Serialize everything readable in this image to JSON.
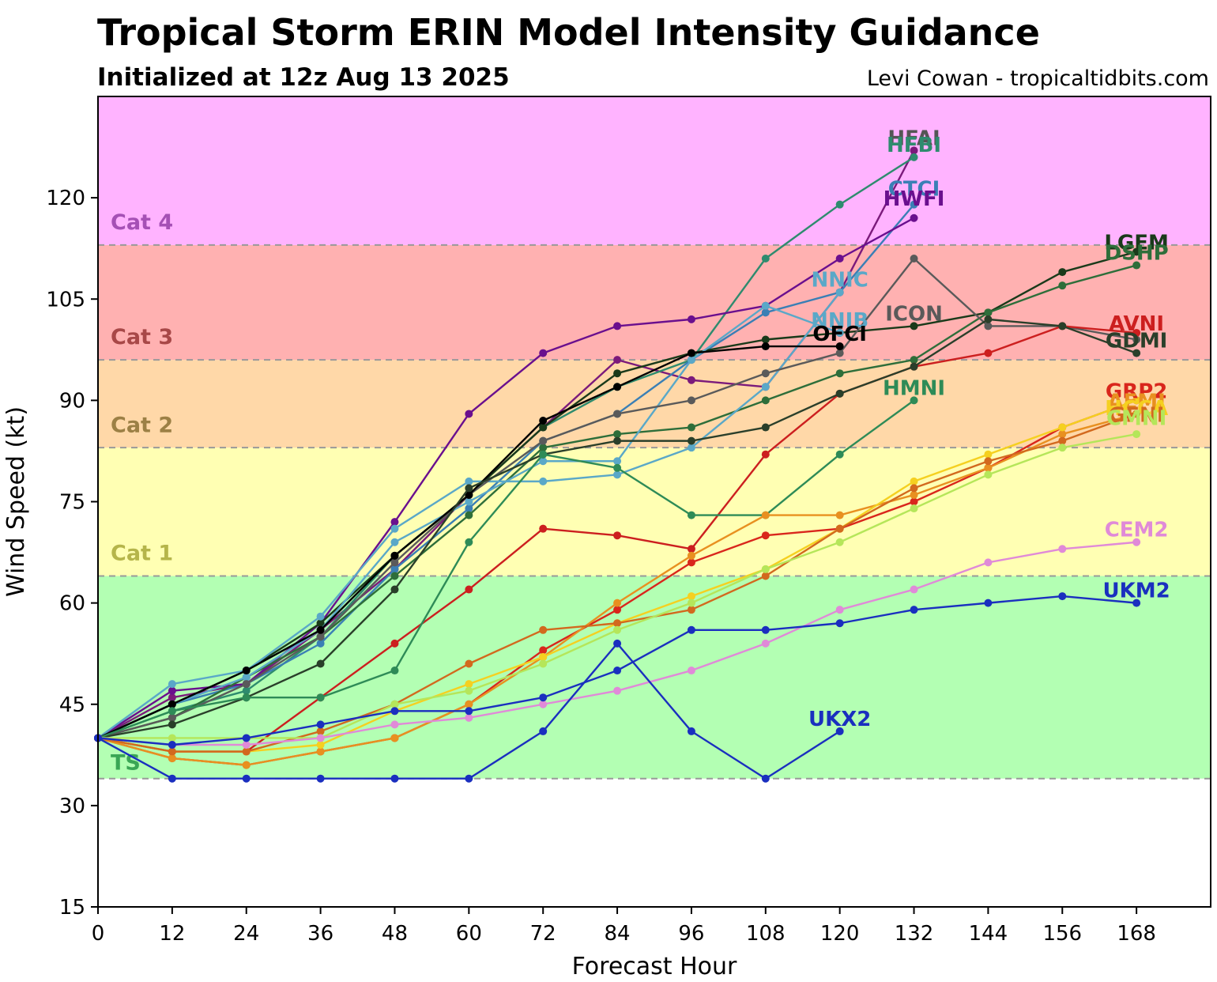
{
  "header": {
    "title": "Tropical Storm ERIN Model Intensity Guidance",
    "subtitle": "Initialized at 12z Aug 13 2025",
    "credit": "Levi Cowan - tropicaltidbits.com"
  },
  "chart_data": {
    "type": "line",
    "title": "Tropical Storm ERIN Model Intensity Guidance",
    "xlabel": "Forecast Hour",
    "ylabel": "Wind Speed (kt)",
    "xlim": [
      0,
      180
    ],
    "ylim": [
      15,
      135
    ],
    "xticks": [
      0,
      12,
      24,
      36,
      48,
      60,
      72,
      84,
      96,
      108,
      120,
      132,
      144,
      156,
      168
    ],
    "yticks": [
      15,
      30,
      45,
      60,
      75,
      90,
      105,
      120
    ],
    "bands": [
      {
        "name": "TS",
        "from": 34,
        "to": 64,
        "color": "#b3ffb3",
        "label_color": "#3aa655",
        "label_value": 36.5
      },
      {
        "name": "Cat 1",
        "from": 64,
        "to": 83,
        "color": "#ffffb3",
        "label_color": "#b5b54a",
        "label_value": 67.5
      },
      {
        "name": "Cat 2",
        "from": 83,
        "to": 96,
        "color": "#ffd8a8",
        "label_color": "#9c8045",
        "label_value": 86.5
      },
      {
        "name": "Cat 3",
        "from": 96,
        "to": 113,
        "color": "#ffb1b1",
        "label_color": "#a84848",
        "label_value": 99.5
      },
      {
        "name": "Cat 4",
        "from": 113,
        "to": 135,
        "color": "#ffb3ff",
        "label_color": "#a550b5",
        "label_value": 116.5
      }
    ],
    "band_line_color": "#999999",
    "series": [
      {
        "name": "HFAI",
        "color": "#7b1a7b",
        "label_color": "#555555",
        "x": [
          0,
          12,
          24,
          36,
          48,
          60,
          72,
          84,
          96,
          108,
          120,
          132
        ],
        "values": [
          40,
          46,
          48,
          56,
          65,
          76,
          86,
          96,
          93,
          92,
          106,
          127
        ],
        "label_at": [
          132,
          129
        ]
      },
      {
        "name": "HFBI",
        "color": "#2e8b6e",
        "label_color": "#2e8b6e",
        "x": [
          0,
          12,
          24,
          36,
          48,
          60,
          72,
          84,
          96,
          108,
          120,
          132
        ],
        "values": [
          40,
          44,
          47,
          55,
          67,
          76,
          86,
          92,
          96,
          111,
          119,
          126
        ],
        "label_at": [
          132,
          128
        ]
      },
      {
        "name": "CTCI",
        "color": "#3a7fb5",
        "label_color": "#3a7fb5",
        "x": [
          0,
          12,
          24,
          36,
          48,
          60,
          72,
          84,
          96,
          108,
          120,
          132
        ],
        "values": [
          40,
          45,
          48,
          54,
          65,
          74,
          84,
          88,
          96,
          103,
          106,
          119
        ],
        "label_at": [
          132,
          121.5
        ]
      },
      {
        "name": "HWFI",
        "color": "#6a0f8e",
        "label_color": "#6a0f8e",
        "x": [
          0,
          12,
          24,
          36,
          48,
          60,
          72,
          84,
          96,
          108,
          120,
          132
        ],
        "values": [
          40,
          47,
          48,
          57,
          72,
          88,
          97,
          101,
          102,
          104,
          111,
          117
        ],
        "label_at": [
          132,
          120
        ]
      },
      {
        "name": "LGEM",
        "color": "#1a3a1a",
        "label_color": "#1a3a1a",
        "x": [
          0,
          12,
          24,
          36,
          48,
          60,
          72,
          84,
          96,
          108,
          120,
          132,
          144,
          156,
          168
        ],
        "values": [
          40,
          45,
          50,
          57,
          67,
          76,
          86,
          94,
          97,
          99,
          100,
          101,
          103,
          109,
          112
        ],
        "label_at": [
          168,
          113.5
        ]
      },
      {
        "name": "DSHP",
        "color": "#2e6e3a",
        "label_color": "#2e6e3a",
        "x": [
          0,
          12,
          24,
          36,
          48,
          60,
          72,
          84,
          96,
          108,
          120,
          132,
          144,
          156,
          168
        ],
        "values": [
          40,
          43,
          49,
          55,
          64,
          73,
          83,
          85,
          86,
          90,
          94,
          96,
          103,
          107,
          110
        ],
        "label_at": [
          168,
          112
        ]
      },
      {
        "name": "NNIC",
        "color": "#5aa8c8",
        "label_color": "#5aa8c8",
        "x": [
          0,
          12,
          24,
          36,
          48,
          60,
          72,
          84,
          96,
          108,
          120
        ],
        "values": [
          40,
          48,
          50,
          58,
          71,
          78,
          78,
          79,
          83,
          92,
          106
        ],
        "label_at": [
          120,
          108
        ]
      },
      {
        "name": "NNIB",
        "color": "#5aa8c8",
        "label_color": "#5aa8c8",
        "x": [
          0,
          12,
          24,
          36,
          48,
          60,
          72,
          84,
          96,
          108,
          120
        ],
        "values": [
          40,
          45,
          49,
          56,
          69,
          75,
          81,
          81,
          96,
          104,
          100
        ],
        "label_at": [
          120,
          102
        ]
      },
      {
        "name": "ICON",
        "color": "#5a5a5a",
        "label_color": "#5a5a5a",
        "x": [
          0,
          12,
          24,
          36,
          48,
          60,
          72,
          84,
          96,
          108,
          120,
          132,
          144,
          156,
          168
        ],
        "values": [
          40,
          43,
          48,
          55,
          66,
          76,
          84,
          88,
          90,
          94,
          97,
          111,
          101,
          101,
          99
        ],
        "label_at": [
          132,
          103
        ]
      },
      {
        "name": "OFCI",
        "color": "#000000",
        "label_color": "#000000",
        "x": [
          0,
          12,
          24,
          36,
          48,
          60,
          72,
          84,
          96,
          108,
          120
        ],
        "values": [
          40,
          45,
          50,
          56,
          67,
          76,
          87,
          92,
          97,
          98,
          98
        ],
        "label_at": [
          120,
          100
        ]
      },
      {
        "name": "AVNI",
        "color": "#cc1f1f",
        "label_color": "#cc1f1f",
        "x": [
          0,
          12,
          24,
          36,
          48,
          60,
          72,
          84,
          96,
          108,
          120,
          132,
          144,
          156,
          168
        ],
        "values": [
          40,
          38,
          38,
          46,
          54,
          62,
          71,
          70,
          68,
          82,
          91,
          95,
          97,
          101,
          100
        ],
        "label_at": [
          168,
          101.5
        ]
      },
      {
        "name": "GDMI",
        "color": "#2a3f2a",
        "label_color": "#2a3f2a",
        "x": [
          0,
          12,
          24,
          36,
          48,
          60,
          72,
          84,
          96,
          108,
          120,
          132,
          144,
          156,
          168
        ],
        "values": [
          40,
          42,
          46,
          51,
          62,
          77,
          82,
          84,
          84,
          86,
          91,
          95,
          102,
          101,
          97
        ],
        "label_at": [
          168,
          99
        ]
      },
      {
        "name": "HMNI",
        "color": "#2e8b57",
        "label_color": "#2e8b57",
        "x": [
          0,
          12,
          24,
          36,
          48,
          60,
          72,
          84,
          96,
          108,
          120,
          132
        ],
        "values": [
          40,
          44,
          46,
          46,
          50,
          69,
          82,
          80,
          73,
          73,
          82,
          90
        ],
        "label_at": [
          132,
          92
        ]
      },
      {
        "name": "GRP2",
        "color": "#d9261c",
        "label_color": "#d9261c",
        "x": [
          0,
          12,
          24,
          36,
          48,
          60,
          72,
          84,
          96,
          108,
          120,
          132,
          144,
          156,
          168
        ],
        "values": [
          40,
          37,
          36,
          38,
          40,
          45,
          53,
          59,
          66,
          70,
          71,
          75,
          80,
          86,
          90
        ],
        "label_at": [
          168,
          91.5
        ]
      },
      {
        "name": "AEMI",
        "color": "#e89020",
        "label_color": "#e89020",
        "x": [
          0,
          12,
          24,
          36,
          48,
          60,
          72,
          84,
          96,
          108,
          120,
          132,
          144,
          156,
          168
        ],
        "values": [
          40,
          37,
          36,
          38,
          40,
          45,
          52,
          60,
          67,
          73,
          73,
          76,
          80,
          85,
          88
        ],
        "label_at": [
          168,
          90
        ]
      },
      {
        "name": "HCCA",
        "color": "#f5d020",
        "label_color": "#f5d020",
        "x": [
          0,
          12,
          24,
          36,
          48,
          60,
          72,
          84,
          96,
          108,
          120,
          132,
          144,
          156,
          168
        ],
        "values": [
          40,
          38,
          38,
          39,
          44,
          48,
          52,
          57,
          61,
          65,
          71,
          78,
          82,
          86,
          90
        ],
        "label_at": [
          168,
          89
        ]
      },
      {
        "name": "GFNI",
        "color": "#d2691e",
        "label_color": "#d2691e",
        "x": [
          0,
          12,
          24,
          36,
          48,
          60,
          72,
          84,
          96,
          108,
          120,
          132,
          144,
          156,
          168
        ],
        "values": [
          40,
          38,
          38,
          41,
          45,
          51,
          56,
          57,
          59,
          64,
          71,
          77,
          81,
          84,
          88
        ],
        "label_at": [
          168,
          88
        ]
      },
      {
        "name": "CMNI",
        "color": "#b5e65a",
        "label_color": "#b5e65a",
        "x": [
          0,
          12,
          24,
          36,
          48,
          60,
          72,
          84,
          96,
          108,
          120,
          132,
          144,
          156,
          168
        ],
        "values": [
          40,
          40,
          40,
          40,
          45,
          47,
          51,
          56,
          60,
          65,
          69,
          74,
          79,
          83,
          85
        ],
        "label_at": [
          168,
          87.5
        ]
      },
      {
        "name": "CEM2",
        "color": "#e08ad8",
        "label_color": "#e08ad8",
        "x": [
          0,
          12,
          24,
          36,
          48,
          60,
          72,
          84,
          96,
          108,
          120,
          132,
          144,
          156,
          168
        ],
        "values": [
          40,
          39,
          39,
          40,
          42,
          43,
          45,
          47,
          50,
          54,
          59,
          62,
          66,
          68,
          69
        ],
        "label_at": [
          168,
          71
        ]
      },
      {
        "name": "UKM2",
        "color": "#1a2fbf",
        "label_color": "#1a2fbf",
        "x": [
          0,
          12,
          24,
          36,
          48,
          60,
          72,
          84,
          96,
          108,
          120,
          132,
          144,
          156,
          168
        ],
        "values": [
          40,
          39,
          40,
          42,
          44,
          44,
          46,
          50,
          56,
          56,
          57,
          59,
          60,
          61,
          60
        ],
        "label_at": [
          168,
          62
        ]
      },
      {
        "name": "UKX2",
        "color": "#1a2fbf",
        "label_color": "#1a2fbf",
        "x": [
          0,
          12,
          24,
          36,
          48,
          60,
          72,
          84,
          96,
          108,
          120
        ],
        "values": [
          40,
          34,
          34,
          34,
          34,
          34,
          41,
          54,
          41,
          34,
          41
        ],
        "label_at": [
          120,
          43
        ]
      }
    ]
  }
}
